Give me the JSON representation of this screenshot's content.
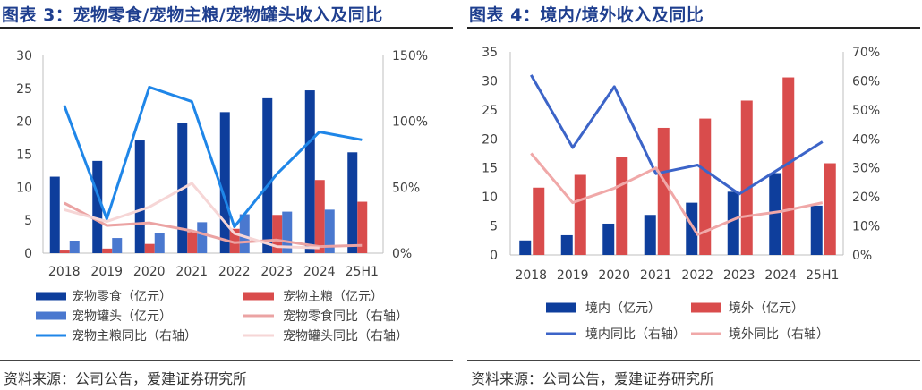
{
  "left": {
    "title": "图表 3：宠物零食/宠物主粮/宠物罐头收入及同比",
    "source": "资料来源：公司公告，爱建证券研究所"
  },
  "right": {
    "title": "图表 4：境内/境外收入及同比",
    "source": "资料来源：公司公告，爱建证券研究所"
  },
  "chart_data": [
    {
      "type": "bar",
      "categories": [
        "2018",
        "2019",
        "2020",
        "2021",
        "2022",
        "2023",
        "2024",
        "25H1"
      ],
      "ylim": [
        0,
        30
      ],
      "y_ticks": [
        "0",
        "5",
        "10",
        "15",
        "20",
        "25",
        "30"
      ],
      "y2lim": [
        0,
        150
      ],
      "y2_ticks": [
        "0%",
        "50%",
        "100%",
        "150%"
      ],
      "grid": false,
      "legend_position": "bottom",
      "series": [
        {
          "name": "宠物零食（亿元）",
          "kind": "bar",
          "axis": "left",
          "color": "#0e3e9c",
          "values": [
            11.6,
            14.0,
            17.1,
            19.8,
            21.4,
            23.5,
            24.7,
            15.3
          ]
        },
        {
          "name": "宠物主粮（亿元）",
          "kind": "bar",
          "axis": "left",
          "color": "#d94c4c",
          "values": [
            0.4,
            0.7,
            1.4,
            3.2,
            3.7,
            5.8,
            11.1,
            7.8
          ]
        },
        {
          "name": "宠物罐头（亿元）",
          "kind": "bar",
          "axis": "left",
          "color": "#4a78cf",
          "values": [
            1.9,
            2.3,
            3.1,
            4.7,
            5.9,
            6.3,
            6.6,
            null
          ]
        },
        {
          "name": "宠物零食同比（右轴）",
          "kind": "line",
          "axis": "right",
          "color": "#eba3a3",
          "values": [
            38,
            21,
            23,
            17,
            8,
            10,
            5,
            6
          ]
        },
        {
          "name": "宠物主粮同比（右轴）",
          "kind": "line",
          "axis": "right",
          "color": "#1f86e8",
          "values": [
            112,
            26,
            126,
            115,
            20,
            60,
            92,
            86
          ]
        },
        {
          "name": "宠物罐头同比（右轴）",
          "kind": "line",
          "axis": "right",
          "color": "#f6d6d6",
          "values": [
            33,
            24,
            35,
            53,
            15,
            5,
            4,
            null
          ]
        }
      ]
    },
    {
      "type": "bar",
      "categories": [
        "2018",
        "2019",
        "2020",
        "2021",
        "2022",
        "2023",
        "2024",
        "25H1"
      ],
      "ylim": [
        0,
        35
      ],
      "y_ticks": [
        "0",
        "5",
        "10",
        "15",
        "20",
        "25",
        "30",
        "35"
      ],
      "y2lim": [
        0,
        70
      ],
      "y2_ticks": [
        "0%",
        "10%",
        "20%",
        "30%",
        "40%",
        "50%",
        "60%",
        "70%"
      ],
      "grid": false,
      "legend_position": "bottom",
      "series": [
        {
          "name": "境内（亿元）",
          "kind": "bar",
          "axis": "left",
          "color": "#0e3e9c",
          "values": [
            2.5,
            3.4,
            5.4,
            6.9,
            9.0,
            10.9,
            14.1,
            8.5
          ]
        },
        {
          "name": "境外（亿元）",
          "kind": "bar",
          "axis": "left",
          "color": "#d94c4c",
          "values": [
            11.6,
            13.8,
            16.9,
            21.9,
            23.5,
            26.6,
            30.6,
            15.8
          ]
        },
        {
          "name": "境内同比（右轴）",
          "kind": "line",
          "axis": "right",
          "color": "#3c64c8",
          "values": [
            62,
            37,
            58,
            28,
            31,
            21,
            30,
            39
          ]
        },
        {
          "name": "境外同比（右轴）",
          "kind": "line",
          "axis": "right",
          "color": "#f0a8a8",
          "values": [
            35,
            18,
            23,
            30,
            7,
            13,
            15,
            18
          ]
        }
      ]
    }
  ]
}
